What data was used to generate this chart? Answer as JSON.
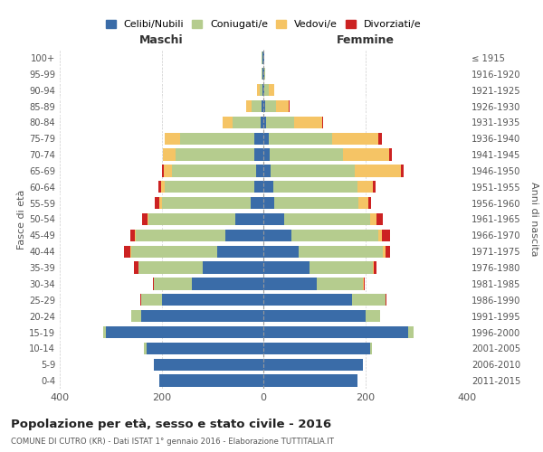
{
  "age_groups": [
    "0-4",
    "5-9",
    "10-14",
    "15-19",
    "20-24",
    "25-29",
    "30-34",
    "35-39",
    "40-44",
    "45-49",
    "50-54",
    "55-59",
    "60-64",
    "65-69",
    "70-74",
    "75-79",
    "80-84",
    "85-89",
    "90-94",
    "95-99",
    "100+"
  ],
  "birth_years": [
    "2011-2015",
    "2006-2010",
    "2001-2005",
    "1996-2000",
    "1991-1995",
    "1986-1990",
    "1981-1985",
    "1976-1980",
    "1971-1975",
    "1966-1970",
    "1961-1965",
    "1956-1960",
    "1951-1955",
    "1946-1950",
    "1941-1945",
    "1936-1940",
    "1931-1935",
    "1926-1930",
    "1921-1925",
    "1916-1920",
    "≤ 1915"
  ],
  "male": {
    "celibi": [
      205,
      215,
      230,
      310,
      240,
      200,
      140,
      120,
      90,
      75,
      55,
      25,
      18,
      15,
      18,
      18,
      5,
      3,
      2,
      1,
      2
    ],
    "coniugati": [
      0,
      0,
      5,
      5,
      20,
      40,
      75,
      125,
      170,
      175,
      170,
      175,
      175,
      165,
      155,
      145,
      55,
      20,
      5,
      2,
      1
    ],
    "vedovi": [
      0,
      0,
      0,
      0,
      0,
      0,
      0,
      0,
      1,
      2,
      3,
      5,
      8,
      15,
      25,
      30,
      20,
      10,
      5,
      0,
      0
    ],
    "divorziati": [
      0,
      0,
      0,
      0,
      0,
      2,
      2,
      10,
      12,
      10,
      10,
      8,
      5,
      5,
      0,
      0,
      0,
      0,
      0,
      0,
      0
    ]
  },
  "female": {
    "nubili": [
      185,
      195,
      210,
      285,
      200,
      175,
      105,
      90,
      70,
      55,
      40,
      22,
      20,
      15,
      12,
      10,
      5,
      3,
      2,
      1,
      1
    ],
    "coniugate": [
      0,
      0,
      3,
      10,
      30,
      65,
      90,
      125,
      165,
      170,
      170,
      165,
      165,
      165,
      145,
      125,
      55,
      22,
      8,
      2,
      1
    ],
    "vedove": [
      0,
      0,
      0,
      0,
      0,
      0,
      2,
      2,
      5,
      8,
      12,
      20,
      30,
      90,
      90,
      90,
      55,
      25,
      12,
      1,
      0
    ],
    "divorziate": [
      0,
      0,
      0,
      0,
      0,
      2,
      2,
      5,
      8,
      15,
      12,
      5,
      5,
      5,
      5,
      8,
      2,
      2,
      0,
      0,
      0
    ]
  },
  "colors": {
    "celibi": "#3a6ca8",
    "coniugati": "#b5cc8e",
    "vedovi": "#f5c465",
    "divorziati": "#cc2222"
  },
  "xlim": 400,
  "title_main": "Popolazione per età, sesso e stato civile - 2016",
  "title_sub": "COMUNE DI CUTRO (KR) - Dati ISTAT 1° gennaio 2016 - Elaborazione TUTTITALIA.IT",
  "ylabel_left": "Fasce di età",
  "ylabel_right": "Anni di nascita",
  "xlabel_left": "Maschi",
  "xlabel_right": "Femmine",
  "legend_labels": [
    "Celibi/Nubili",
    "Coniugati/e",
    "Vedovi/e",
    "Divorziati/e"
  ],
  "background_color": "#ffffff",
  "grid_color": "#cccccc"
}
